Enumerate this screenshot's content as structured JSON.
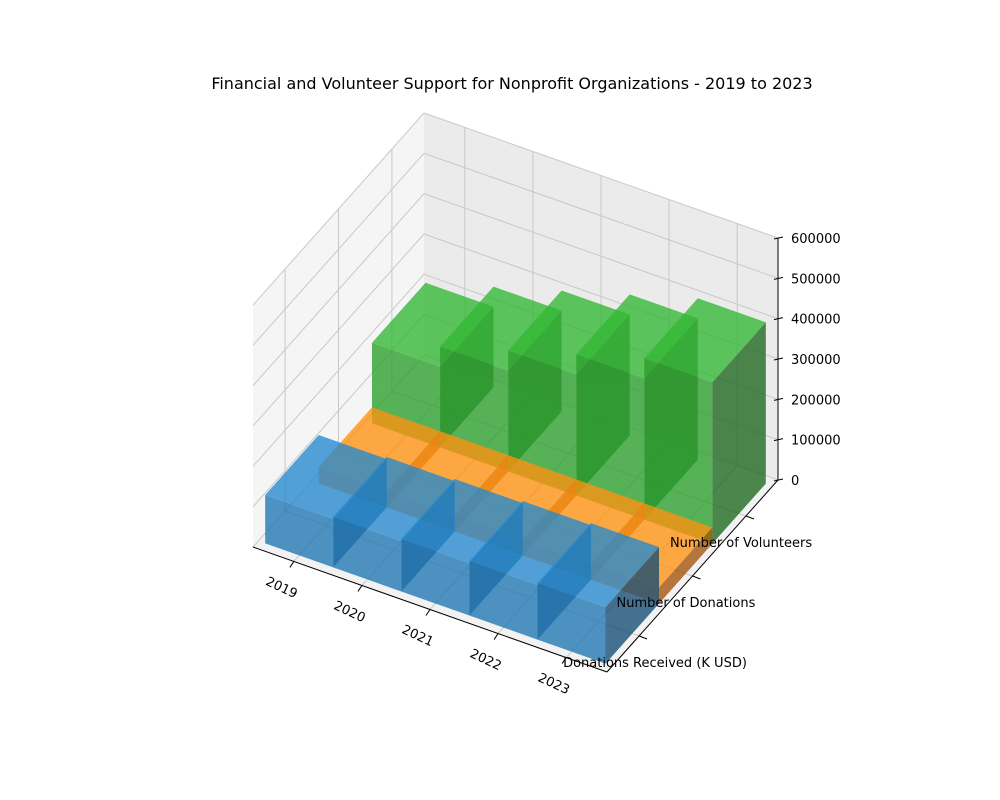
{
  "chart_data": {
    "type": "bar3d",
    "title": "Financial and Volunteer Support for Nonprofit Organizations - 2019 to 2023",
    "categories": [
      "2019",
      "2020",
      "2021",
      "2022",
      "2023"
    ],
    "metrics": [
      "Donations Received (K USD)",
      "Number of Donations",
      "Number of Volunteers"
    ],
    "series": [
      {
        "values": [
          120000,
          125000,
          130000,
          135000,
          140000
        ],
        "color": "#1f77b4"
      },
      {
        "values": [
          40000,
          40000,
          40000,
          40000,
          40000
        ],
        "color": "#ff7f0e"
      },
      {
        "values": [
          200000,
          250000,
          300000,
          350000,
          400000
        ],
        "color": "#2ca02c"
      }
    ],
    "z_ticks": [
      "0",
      "100000",
      "200000",
      "300000",
      "400000",
      "500000",
      "600000"
    ],
    "zlim": [
      0,
      600000
    ],
    "grid": true
  }
}
